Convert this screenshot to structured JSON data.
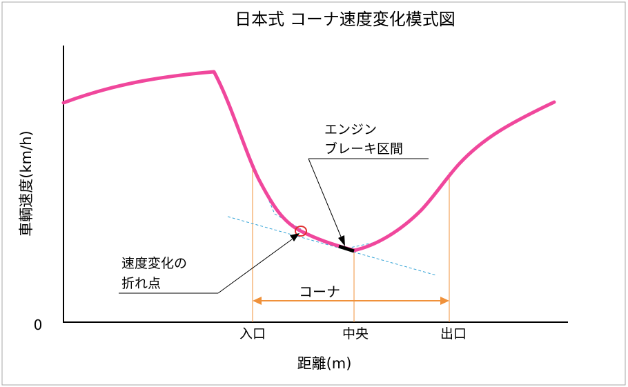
{
  "title": "日本式 コーナ速度変化模式図",
  "y_axis_label": "車輌速度(km/h)",
  "x_axis_label": "距離(m)",
  "origin_label": "0",
  "x_ticks": {
    "entry": "入口",
    "center": "中央",
    "exit": "出口"
  },
  "corner_label": "コーナ",
  "annotations": {
    "engine_brake_line1": "エンジン",
    "engine_brake_line2": "ブレーキ区間",
    "break_point_line1": "速度変化の",
    "break_point_line2": "折れ点"
  },
  "colors": {
    "speed_curve": "#f0479c",
    "guide_lines": "#33a3d6",
    "markers": "#f0913a",
    "break_point_circle": "#e03030",
    "axes": "#000000"
  }
}
